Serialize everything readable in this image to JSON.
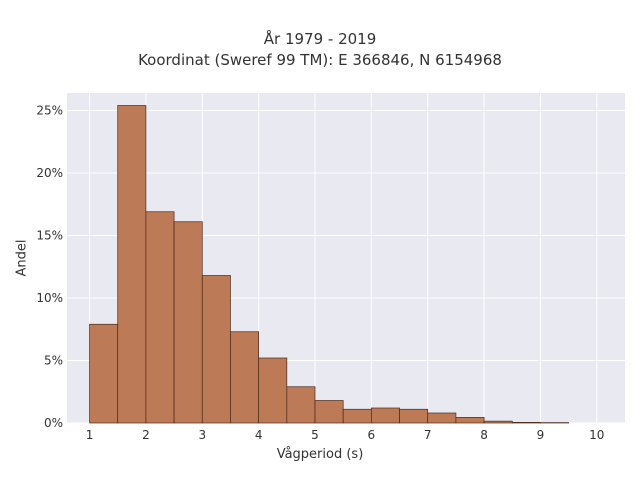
{
  "chart_data": {
    "type": "bar",
    "title_lines": [
      "År 1979 - 2019",
      "Koordinat (Sweref 99 TM): E 366846, N 6154968"
    ],
    "xlabel": "Vågperiod (s)",
    "ylabel": "Andel",
    "x_ticks": [
      "1",
      "2",
      "3",
      "4",
      "5",
      "6",
      "7",
      "8",
      "9",
      "10"
    ],
    "y_ticks": [
      "0%",
      "5%",
      "10%",
      "15%",
      "20%",
      "25%"
    ],
    "xlim": [
      0.6,
      10.5
    ],
    "ylim": [
      0,
      26.4
    ],
    "grid": true,
    "bin_width": 0.5,
    "bins": [
      {
        "start": 1.0,
        "end": 1.5,
        "value": 7.9
      },
      {
        "start": 1.5,
        "end": 2.0,
        "value": 25.4
      },
      {
        "start": 2.0,
        "end": 2.5,
        "value": 16.9
      },
      {
        "start": 2.5,
        "end": 3.0,
        "value": 16.1
      },
      {
        "start": 3.0,
        "end": 3.5,
        "value": 11.8
      },
      {
        "start": 3.5,
        "end": 4.0,
        "value": 7.3
      },
      {
        "start": 4.0,
        "end": 4.5,
        "value": 5.2
      },
      {
        "start": 4.5,
        "end": 5.0,
        "value": 2.9
      },
      {
        "start": 5.0,
        "end": 5.5,
        "value": 1.8
      },
      {
        "start": 5.5,
        "end": 6.0,
        "value": 1.1
      },
      {
        "start": 6.0,
        "end": 6.5,
        "value": 1.2
      },
      {
        "start": 6.5,
        "end": 7.0,
        "value": 1.1
      },
      {
        "start": 7.0,
        "end": 7.5,
        "value": 0.8
      },
      {
        "start": 7.5,
        "end": 8.0,
        "value": 0.45
      },
      {
        "start": 8.0,
        "end": 8.5,
        "value": 0.15
      },
      {
        "start": 8.5,
        "end": 9.0,
        "value": 0.05
      },
      {
        "start": 9.0,
        "end": 9.5,
        "value": 0.03
      }
    ],
    "colors": {
      "bar_fill": "#bd7a56",
      "bar_edge": "#4a2a1a",
      "plot_bg": "#e9e9f1",
      "grid": "#ffffff",
      "text": "#333333"
    }
  }
}
